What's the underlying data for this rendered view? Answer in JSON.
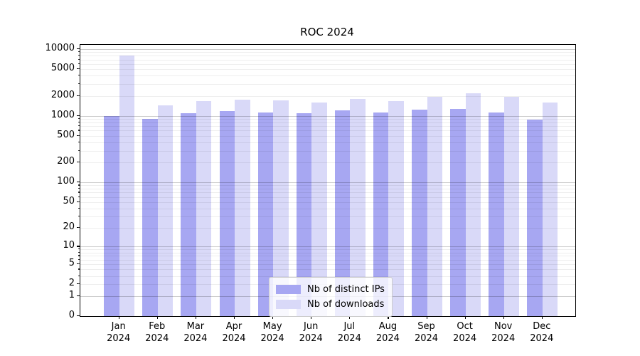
{
  "chart_data": {
    "type": "bar",
    "title": "ROC 2024",
    "x_months": [
      "Jan",
      "Feb",
      "Mar",
      "Apr",
      "May",
      "Jun",
      "Jul",
      "Aug",
      "Sep",
      "Oct",
      "Nov",
      "Dec"
    ],
    "x_year": "2024",
    "series": [
      {
        "name": "Nb of distinct IPs",
        "color": "#a7a7f2",
        "values": [
          1000,
          900,
          1090,
          1180,
          1130,
          1090,
          1210,
          1110,
          1230,
          1280,
          1130,
          870
        ]
      },
      {
        "name": "Nb of downloads",
        "color": "#d9d9f8",
        "values": [
          8100,
          1450,
          1660,
          1730,
          1690,
          1600,
          1780,
          1660,
          1930,
          2170,
          1910,
          1600
        ]
      }
    ],
    "yscale": "log(value+1)",
    "ylim": [
      0,
      10000
    ],
    "yticks": [
      0,
      1,
      2,
      5,
      10,
      20,
      50,
      100,
      200,
      500,
      1000,
      2000,
      5000,
      10000
    ],
    "grid": "horizontal major+minor, drawn over bars",
    "legend_position": "lower center inside plot",
    "axis_color": "#000000",
    "major_grid_color": "#c9c9c9",
    "minor_grid_color": "#ececec"
  }
}
